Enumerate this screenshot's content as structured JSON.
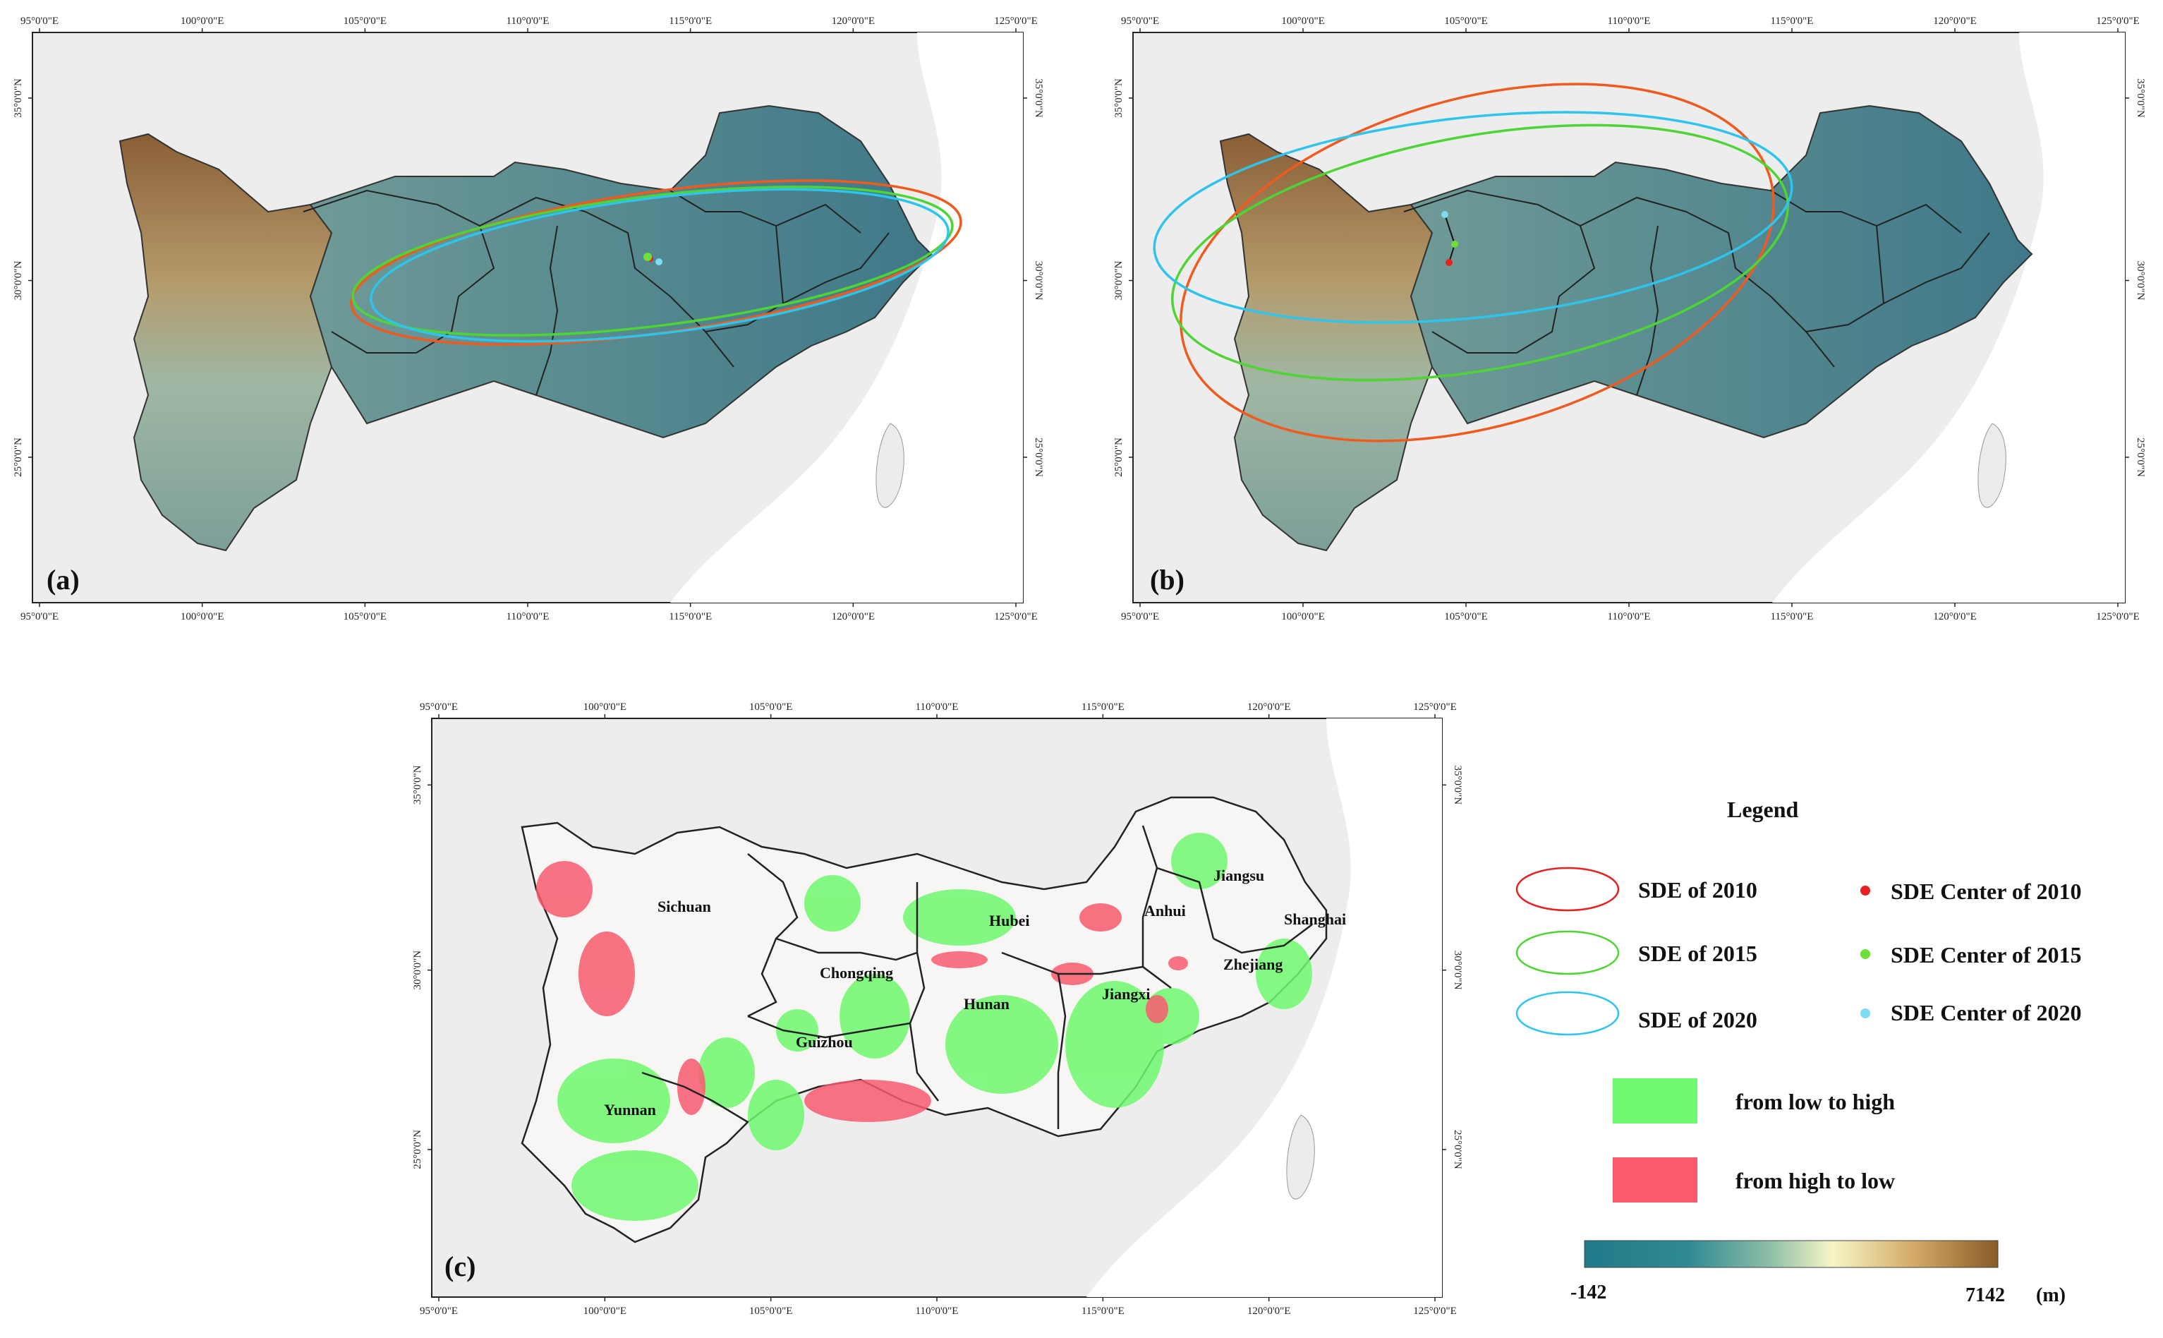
{
  "axes": {
    "lon_ticks": [
      "95°0'0\"E",
      "100°0'0\"E",
      "105°0'0\"E",
      "110°0'0\"E",
      "115°0'0\"E",
      "120°0'0\"E",
      "125°0'0\"E"
    ],
    "lat_ticks": [
      "35°0'0\"N",
      "30°0'0\"N",
      "25°0'0\"N"
    ]
  },
  "panels": {
    "a": {
      "label": "(a)"
    },
    "b": {
      "label": "(b)"
    },
    "c": {
      "label": "(c)"
    }
  },
  "provinces": {
    "sichuan": "Sichuan",
    "chongqing": "Chongqing",
    "hubei": "Hubei",
    "anhui": "Anhui",
    "jiangsu": "Jiangsu",
    "shanghai": "Shanghai",
    "zhejiang": "Zhejiang",
    "hunan": "Hunan",
    "jiangxi": "Jiangxi",
    "guizhou": "Guizhou",
    "yunnan": "Yunnan"
  },
  "legend": {
    "title": "Legend",
    "sde_2010": "SDE of 2010",
    "sde_2015": "SDE of 2015",
    "sde_2020": "SDE of 2020",
    "center_2010": "SDE Center of 2010",
    "center_2015": "SDE Center of 2015",
    "center_2020": "SDE Center of 2020",
    "low_to_high": "from low to high",
    "high_to_low": "from high to low",
    "elev_min": "-142",
    "elev_max": "7142",
    "elev_unit": "(m)"
  },
  "colors": {
    "sde_2010": "#f05a1e",
    "sde_2015": "#4fd435",
    "sde_2020": "#2fc4ec",
    "center_2010": "#e52121",
    "center_2015": "#6de03a",
    "center_2020": "#7ddcf2",
    "low_to_high": "#6ef96e",
    "high_to_low": "#f95a6e",
    "elev_low": "#207a88",
    "elev_high": "#8a5a28"
  }
}
